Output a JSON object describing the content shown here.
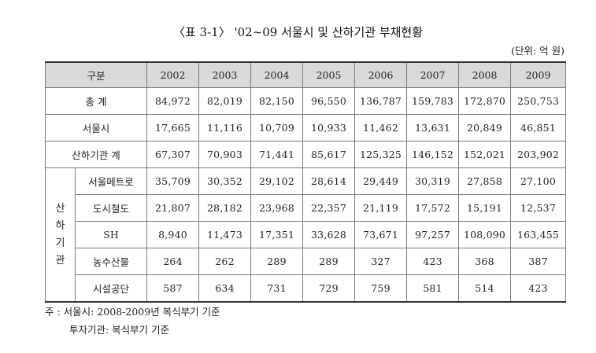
{
  "title": "〈표 3-1〉 '02~09 서울시 및 산하기관 부채현황",
  "unit": "(단위: 억 원)",
  "header": {
    "category": "구분",
    "years": [
      "2002",
      "2003",
      "2004",
      "2005",
      "2006",
      "2007",
      "2008",
      "2009"
    ]
  },
  "rows": [
    {
      "label": "총 계",
      "values": [
        "84,972",
        "82,019",
        "82,150",
        "96,550",
        "136,787",
        "159,783",
        "172,870",
        "250,753"
      ]
    },
    {
      "label": "서울시",
      "values": [
        "17,665",
        "11,116",
        "10,709",
        "10,933",
        "11,462",
        "13,631",
        "20,849",
        "46,851"
      ]
    },
    {
      "label": "산하기관 계",
      "values": [
        "67,307",
        "70,903",
        "71,441",
        "85,617",
        "125,325",
        "146,152",
        "152,021",
        "203,902"
      ]
    }
  ],
  "group_label": "산하기관",
  "group_label_lines": [
    "산",
    "하",
    "기",
    "관"
  ],
  "sub_rows": [
    {
      "label": "서울메트로",
      "values": [
        "35,709",
        "30,352",
        "29,102",
        "28,614",
        "29,449",
        "30,319",
        "27,858",
        "27,100"
      ]
    },
    {
      "label": "도시철도",
      "values": [
        "21,807",
        "28,182",
        "23,968",
        "22,357",
        "21,119",
        "17,572",
        "15,191",
        "12,537"
      ]
    },
    {
      "label": "SH",
      "values": [
        "8,940",
        "11,473",
        "17,351",
        "33,628",
        "73,671",
        "97,257",
        "108,090",
        "163,455"
      ]
    },
    {
      "label": "농수산물",
      "values": [
        "264",
        "262",
        "289",
        "289",
        "327",
        "423",
        "368",
        "387"
      ]
    },
    {
      "label": "시설공단",
      "values": [
        "587",
        "634",
        "731",
        "729",
        "759",
        "581",
        "514",
        "423"
      ]
    }
  ],
  "notes": {
    "line1": "주 : 서울시: 2008-2009년 복식부기 기준",
    "line2": "투자기관: 복식부기 기준"
  }
}
